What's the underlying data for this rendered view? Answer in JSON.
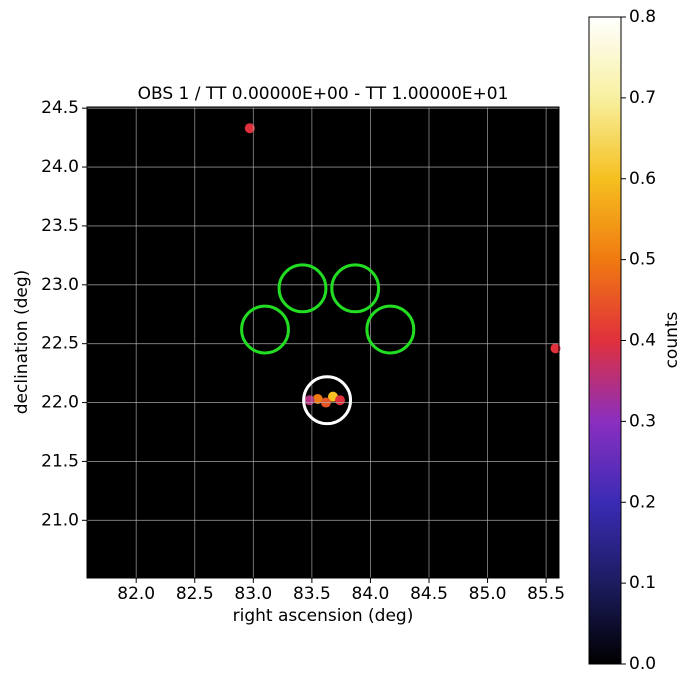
{
  "chart_data": {
    "type": "heatmap",
    "title": "OBS 1 / TT 0.00000E+00 - TT 1.00000E+01",
    "x_label": "right ascension (deg)",
    "y_label": "declination (deg)",
    "xlim": [
      81.58,
      85.61
    ],
    "ylim": [
      20.51,
      24.51
    ],
    "xticks": [
      {
        "value": 82.0,
        "label": "82.0"
      },
      82.5,
      {
        "value": 83.0,
        "label": "83.0"
      },
      83.5,
      {
        "value": 84.0,
        "label": "84.0"
      },
      84.5,
      {
        "value": 85.0,
        "label": "85.0"
      },
      85.5
    ],
    "yticks": [
      {
        "value": 21.0,
        "label": "21.0"
      },
      21.5,
      {
        "value": 22.0,
        "label": "22.0"
      },
      22.5,
      {
        "value": 23.0,
        "label": "23.0"
      },
      23.5,
      {
        "value": 24.0,
        "label": "24.0"
      },
      24.5
    ],
    "grid": true,
    "colorbar": {
      "label": "counts",
      "lim": [
        0.0,
        0.8
      ],
      "ticks": [
        {
          "value": 0.0,
          "label": "0.0"
        },
        0.1,
        0.2,
        0.3,
        0.4,
        0.5,
        0.6,
        0.7,
        0.8
      ],
      "colormap": [
        "#000000",
        "#1c1c60",
        "#3b2bb5",
        "#8a2fc0",
        "#e0303c",
        "#f07a10",
        "#f5c020",
        "#f8f0a0",
        "#ffffff"
      ]
    },
    "hotspots": {
      "ra": [
        83.55,
        83.68,
        83.62,
        83.74,
        82.97,
        85.58,
        83.48
      ],
      "dec": [
        22.03,
        22.05,
        22.0,
        22.02,
        24.33,
        22.46,
        22.02
      ],
      "values": [
        0.5,
        0.6,
        0.45,
        0.4,
        0.4,
        0.4,
        0.35
      ]
    },
    "regions": {
      "ra": [
        83.1,
        83.42,
        83.87,
        84.17,
        83.63
      ],
      "dec": [
        22.62,
        22.97,
        22.97,
        22.62,
        22.02
      ],
      "radius": [
        0.2,
        0.2,
        0.2,
        0.2,
        0.2
      ],
      "colors": [
        "#22dd22",
        "#22dd22",
        "#22dd22",
        "#22dd22",
        "#ffffff"
      ]
    }
  }
}
